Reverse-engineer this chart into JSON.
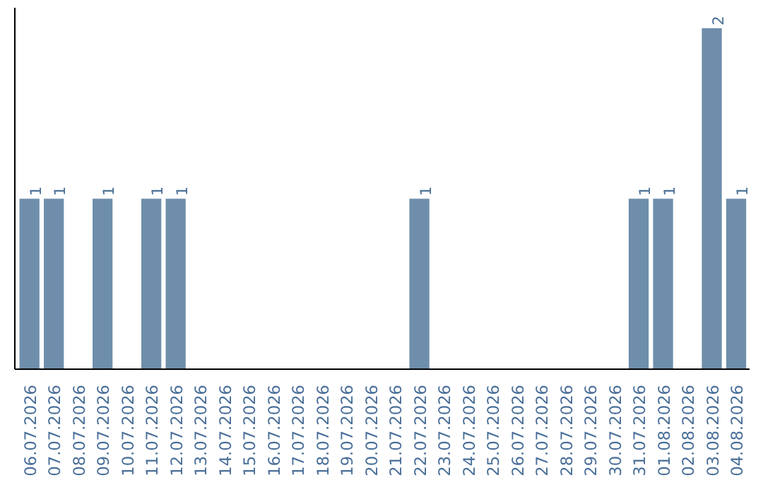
{
  "chart_data": {
    "type": "bar",
    "categories": [
      "06.07.2026",
      "07.07.2026",
      "08.07.2026",
      "09.07.2026",
      "10.07.2026",
      "11.07.2026",
      "12.07.2026",
      "13.07.2026",
      "14.07.2026",
      "15.07.2026",
      "16.07.2026",
      "17.07.2026",
      "18.07.2026",
      "19.07.2026",
      "20.07.2026",
      "21.07.2026",
      "22.07.2026",
      "23.07.2026",
      "24.07.2026",
      "25.07.2026",
      "26.07.2026",
      "27.07.2026",
      "28.07.2026",
      "29.07.2026",
      "30.07.2026",
      "31.07.2026",
      "01.08.2026",
      "02.08.2026",
      "03.08.2026",
      "04.08.2026"
    ],
    "values": [
      1,
      1,
      0,
      1,
      0,
      1,
      1,
      0,
      0,
      0,
      0,
      0,
      0,
      0,
      0,
      0,
      1,
      0,
      0,
      0,
      0,
      0,
      0,
      0,
      0,
      1,
      1,
      0,
      2,
      1
    ],
    "value_labels": [
      "1",
      "1",
      null,
      "1",
      null,
      "1",
      "1",
      null,
      null,
      null,
      null,
      null,
      null,
      null,
      null,
      null,
      "1",
      null,
      null,
      null,
      null,
      null,
      null,
      null,
      null,
      "1",
      "1",
      null,
      "2",
      "1"
    ],
    "color": "#6e8eab",
    "tick_labels": "x",
    "grid": false
  }
}
